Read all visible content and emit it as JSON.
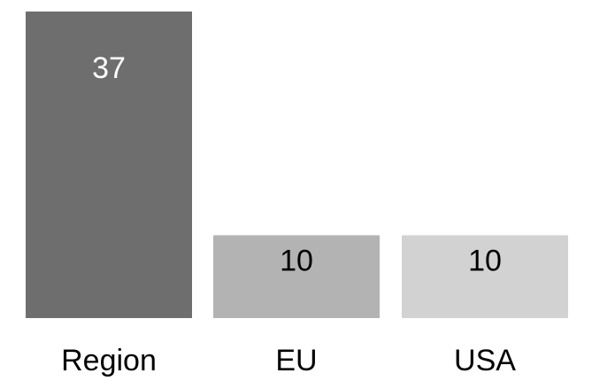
{
  "chart_data": {
    "type": "bar",
    "categories": [
      "Region",
      "EU",
      "USA"
    ],
    "values": [
      37,
      10,
      10
    ],
    "data_labels": [
      "37",
      "10",
      "10"
    ],
    "bar_colors": [
      "#6e6e6e",
      "#b3b3b3",
      "#d2d2d2"
    ],
    "label_colors": [
      "#ffffff",
      "#000000",
      "#000000"
    ],
    "ylim": [
      0,
      37
    ],
    "grid": false,
    "axes_visible": false,
    "legend": "none"
  }
}
